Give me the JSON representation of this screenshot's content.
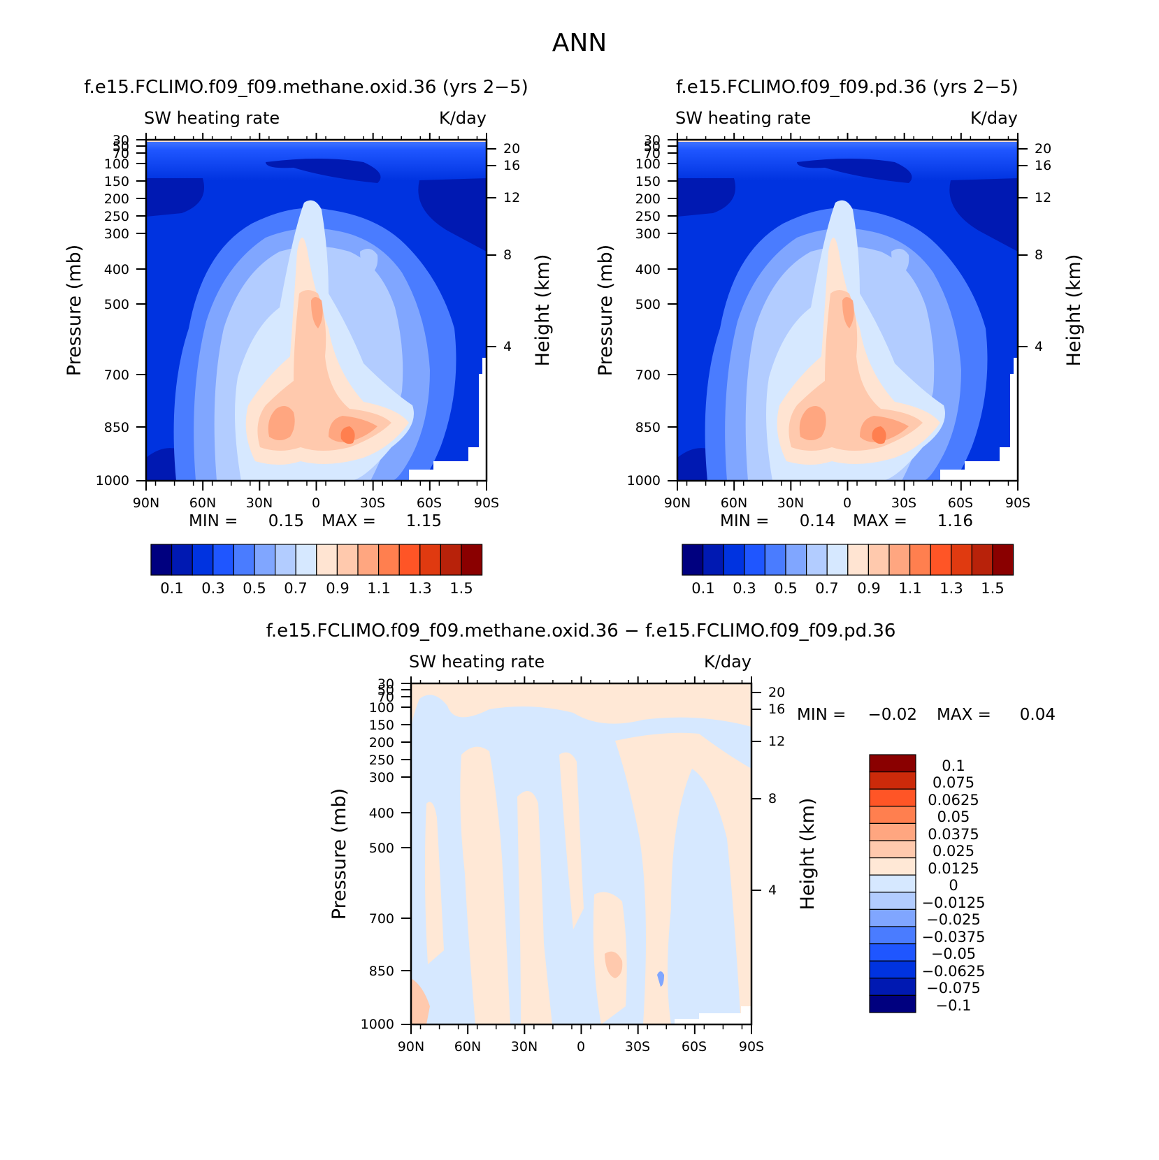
{
  "page": {
    "title": "ANN"
  },
  "colors": {
    "abs_levels": [
      "#00007f",
      "#0019b2",
      "#0033e0",
      "#1f56ff",
      "#4a7cff",
      "#80a6ff",
      "#b2ccff",
      "#d6e8ff",
      "#ffe4d2",
      "#ffc9ad",
      "#ffa680",
      "#ff7f4f",
      "#ff5526",
      "#e03a10",
      "#b8220a",
      "#8a0000"
    ],
    "diff_levels": [
      "#00007f",
      "#0019b2",
      "#0033e0",
      "#1f56ff",
      "#4a7cff",
      "#80a6ff",
      "#b2ccff",
      "#d6e8ff",
      "#ffe8d6",
      "#ffc9ad",
      "#ffa680",
      "#ff7f4f",
      "#ff5526",
      "#cc2a0a",
      "#8a0000"
    ]
  },
  "chart_data": [
    {
      "type": "heatmap",
      "title": "f.e15.FCLIMO.f09_f09.methane.oxid.36 (yrs 2−5)",
      "left_label": "SW heating rate",
      "right_label": "K/day",
      "ylabel": "Pressure (mb)",
      "ylabel_right": "Height (km)",
      "x_ticks": [
        "90N",
        "60N",
        "30N",
        "0",
        "30S",
        "60S",
        "90S"
      ],
      "y_ticks": [
        "30",
        "50",
        "70",
        "100",
        "150",
        "200",
        "250",
        "300",
        "400",
        "500",
        "700",
        "850",
        "1000"
      ],
      "y_ticks_right": [
        "20",
        "16",
        "12",
        "8",
        "4"
      ],
      "stats": {
        "min_label": "MIN =",
        "min": "0.15",
        "max_label": "MAX =",
        "max": "1.15"
      },
      "colorbar_labels": [
        "0.1",
        "0.3",
        "0.5",
        "0.7",
        "0.9",
        "1.1",
        "1.3",
        "1.5"
      ]
    },
    {
      "type": "heatmap",
      "title": "f.e15.FCLIMO.f09_f09.pd.36 (yrs 2−5)",
      "left_label": "SW heating rate",
      "right_label": "K/day",
      "ylabel": "Pressure (mb)",
      "ylabel_right": "Height (km)",
      "x_ticks": [
        "90N",
        "60N",
        "30N",
        "0",
        "30S",
        "60S",
        "90S"
      ],
      "y_ticks": [
        "30",
        "50",
        "70",
        "100",
        "150",
        "200",
        "250",
        "300",
        "400",
        "500",
        "700",
        "850",
        "1000"
      ],
      "y_ticks_right": [
        "20",
        "16",
        "12",
        "8",
        "4"
      ],
      "stats": {
        "min_label": "MIN =",
        "min": "0.14",
        "max_label": "MAX =",
        "max": "1.16"
      },
      "colorbar_labels": [
        "0.1",
        "0.3",
        "0.5",
        "0.7",
        "0.9",
        "1.1",
        "1.3",
        "1.5"
      ]
    },
    {
      "type": "heatmap",
      "title": "f.e15.FCLIMO.f09_f09.methane.oxid.36 − f.e15.FCLIMO.f09_f09.pd.36",
      "left_label": "SW heating rate",
      "right_label": "K/day",
      "ylabel": "Pressure (mb)",
      "ylabel_right": "Height (km)",
      "x_ticks": [
        "90N",
        "60N",
        "30N",
        "0",
        "30S",
        "60S",
        "90S"
      ],
      "y_ticks": [
        "30",
        "50",
        "70",
        "100",
        "150",
        "200",
        "250",
        "300",
        "400",
        "500",
        "700",
        "850",
        "1000"
      ],
      "y_ticks_right": [
        "20",
        "16",
        "12",
        "8",
        "4"
      ],
      "stats": {
        "min_label": "MIN =",
        "min": "−0.02",
        "max_label": "MAX =",
        "max": "0.04"
      },
      "colorbar_labels": [
        "0.1",
        "0.075",
        "0.0625",
        "0.05",
        "0.0375",
        "0.025",
        "0.0125",
        "0",
        "−0.0125",
        "−0.025",
        "−0.0375",
        "−0.05",
        "−0.0625",
        "−0.075",
        "−0.1"
      ]
    }
  ]
}
